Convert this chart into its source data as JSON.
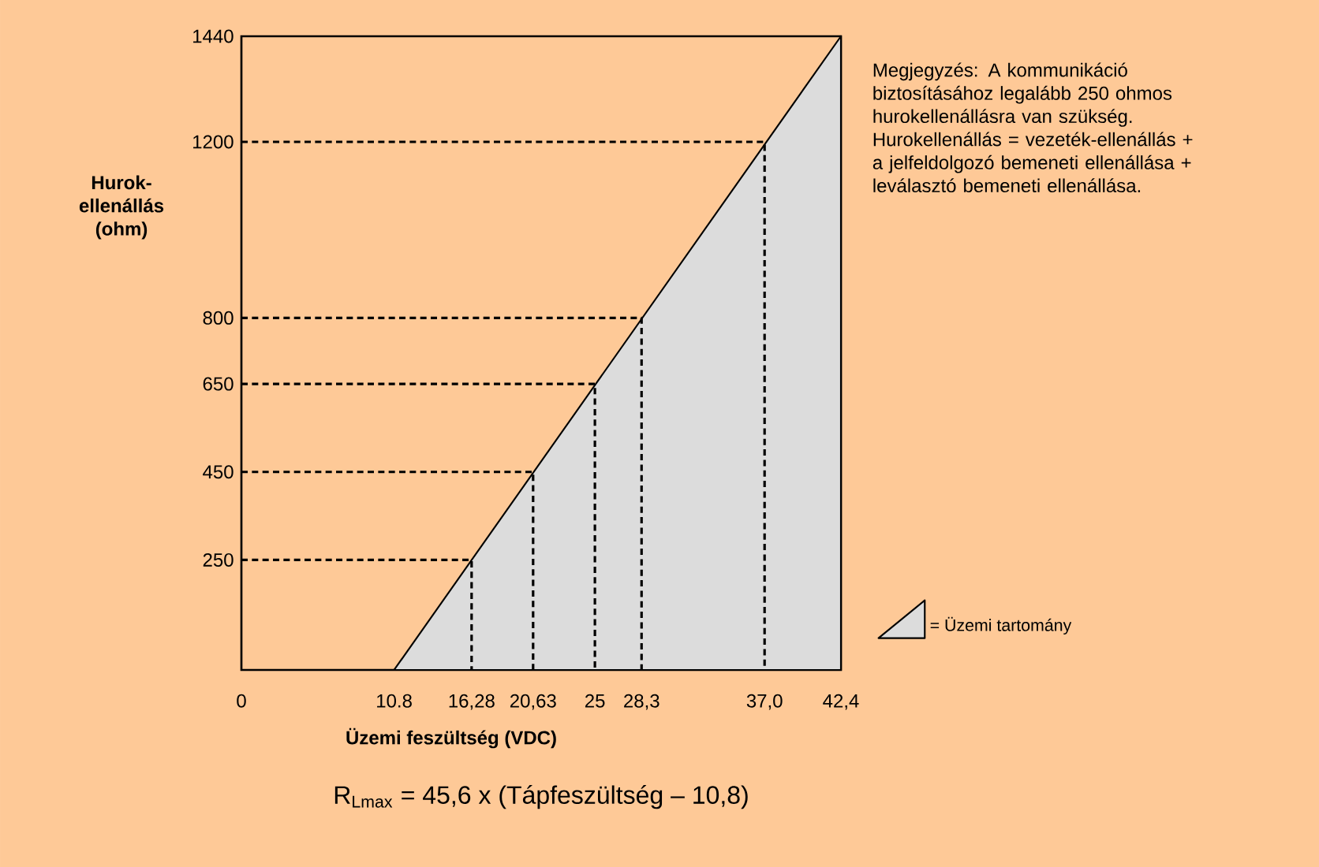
{
  "chart_data": {
    "type": "area",
    "xlabel": "Üzemi feszültség (VDC)",
    "ylabel": "Hurok-ellenállás (ohm)",
    "xlim": [
      0,
      42.4
    ],
    "ylim": [
      0,
      1440
    ],
    "xticks": [
      0,
      10.8,
      {
        "value": 16.28,
        "label": "16,28"
      },
      {
        "value": 20.63,
        "label": "20,63"
      },
      25,
      {
        "value": 28.3,
        "label": "28,3"
      },
      {
        "value": 37.0,
        "label": "37,0"
      },
      {
        "value": 42.4,
        "label": "42,4"
      }
    ],
    "yticks": [
      250,
      450,
      650,
      800,
      1200,
      1440
    ],
    "series": [
      {
        "name": "= Üzemi tartomány",
        "color": "#dcdcdc",
        "x": [
          10.8,
          42.4
        ],
        "values": [
          0,
          1440
        ]
      },
      {
        "type": "line",
        "line_style": "dashed",
        "color": "#000000",
        "x": [
          0,
          16.28,
          16.28
        ],
        "values": [
          250,
          250,
          0
        ]
      },
      {
        "type": "line",
        "line_style": "dashed",
        "color": "#000000",
        "x": [
          0,
          20.63,
          20.63
        ],
        "values": [
          450,
          450,
          0
        ]
      },
      {
        "type": "line",
        "line_style": "dashed",
        "color": "#000000",
        "x": [
          0,
          25,
          25
        ],
        "values": [
          650,
          650,
          0
        ]
      },
      {
        "type": "line",
        "line_style": "dashed",
        "color": "#000000",
        "x": [
          0,
          28.3,
          28.3
        ],
        "values": [
          800,
          800,
          0
        ]
      },
      {
        "type": "line",
        "line_style": "dashed",
        "color": "#000000",
        "x": [
          0,
          37.0,
          37.0
        ],
        "values": [
          1200,
          1200,
          0
        ]
      }
    ],
    "legend": "right",
    "annotations": [
      "Megjegyzés: A kommunikáció biztosításához legalább 250 ohmos hurokellenállásra van szükség. Hurokellenállás = vezeték-ellenállás + a jelfeldolgozó bemeneti ellenállása + leválasztó bemeneti ellenállása.",
      "R$_{Lmax}$ = 45,6 x (Tápfeszültség – 10,8)"
    ]
  }
}
